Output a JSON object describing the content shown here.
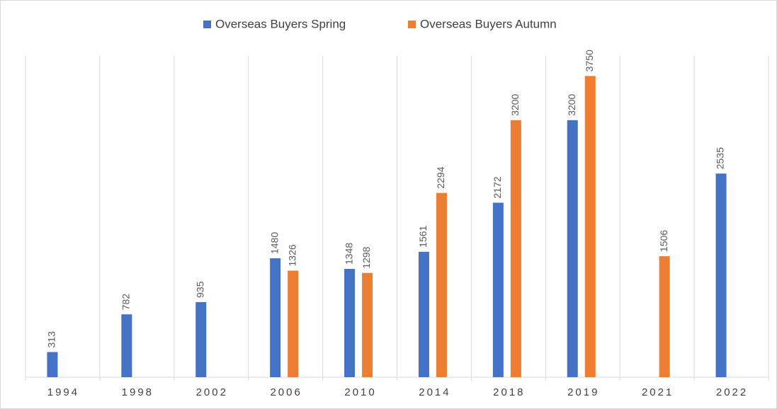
{
  "chart_data": {
    "type": "bar",
    "categories": [
      "1994",
      "1998",
      "2002",
      "2006",
      "2010",
      "2014",
      "2018",
      "2019",
      "2021",
      "2022"
    ],
    "series": [
      {
        "name": "Overseas Buyers Spring",
        "color": "#4472c4",
        "values": [
          313,
          782,
          935,
          1480,
          1348,
          1561,
          2172,
          3200,
          null,
          2535
        ]
      },
      {
        "name": "Overseas Buyers Autumn",
        "color": "#ed7d31",
        "values": [
          null,
          null,
          null,
          1326,
          1298,
          2294,
          3200,
          3750,
          1506,
          null
        ]
      }
    ],
    "ylim": [
      0,
      4000
    ],
    "legend": "top"
  }
}
